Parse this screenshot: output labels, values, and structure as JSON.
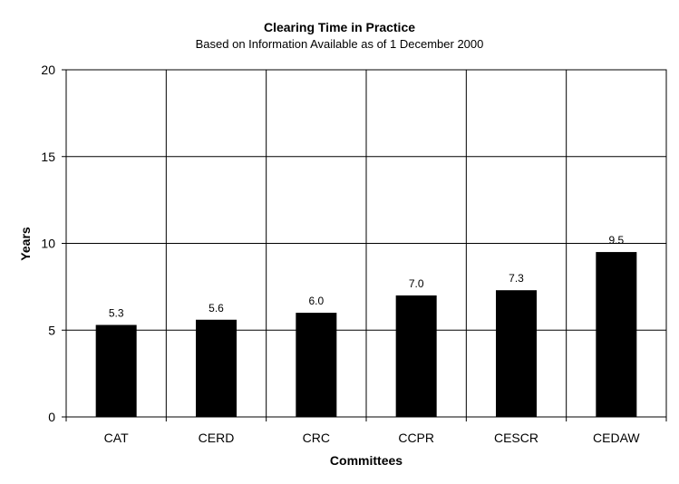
{
  "chart_data": {
    "type": "bar",
    "title": "Clearing Time in Practice",
    "subtitle": "Based on Information Available as of 1 December 2000",
    "xlabel": "Committees",
    "ylabel": "Years",
    "categories": [
      "CAT",
      "CERD",
      "CRC",
      "CCPR",
      "CESCR",
      "CEDAW"
    ],
    "values": [
      5.3,
      5.6,
      6.0,
      7.0,
      7.3,
      9.5
    ],
    "data_labels": [
      "5.3",
      "5.6",
      "6.0",
      "7.0",
      "7.3",
      "9.5"
    ],
    "ylim": [
      0,
      20
    ],
    "yticks": [
      0,
      5,
      10,
      15,
      20
    ],
    "grid": true,
    "bar_color": "#000000"
  }
}
